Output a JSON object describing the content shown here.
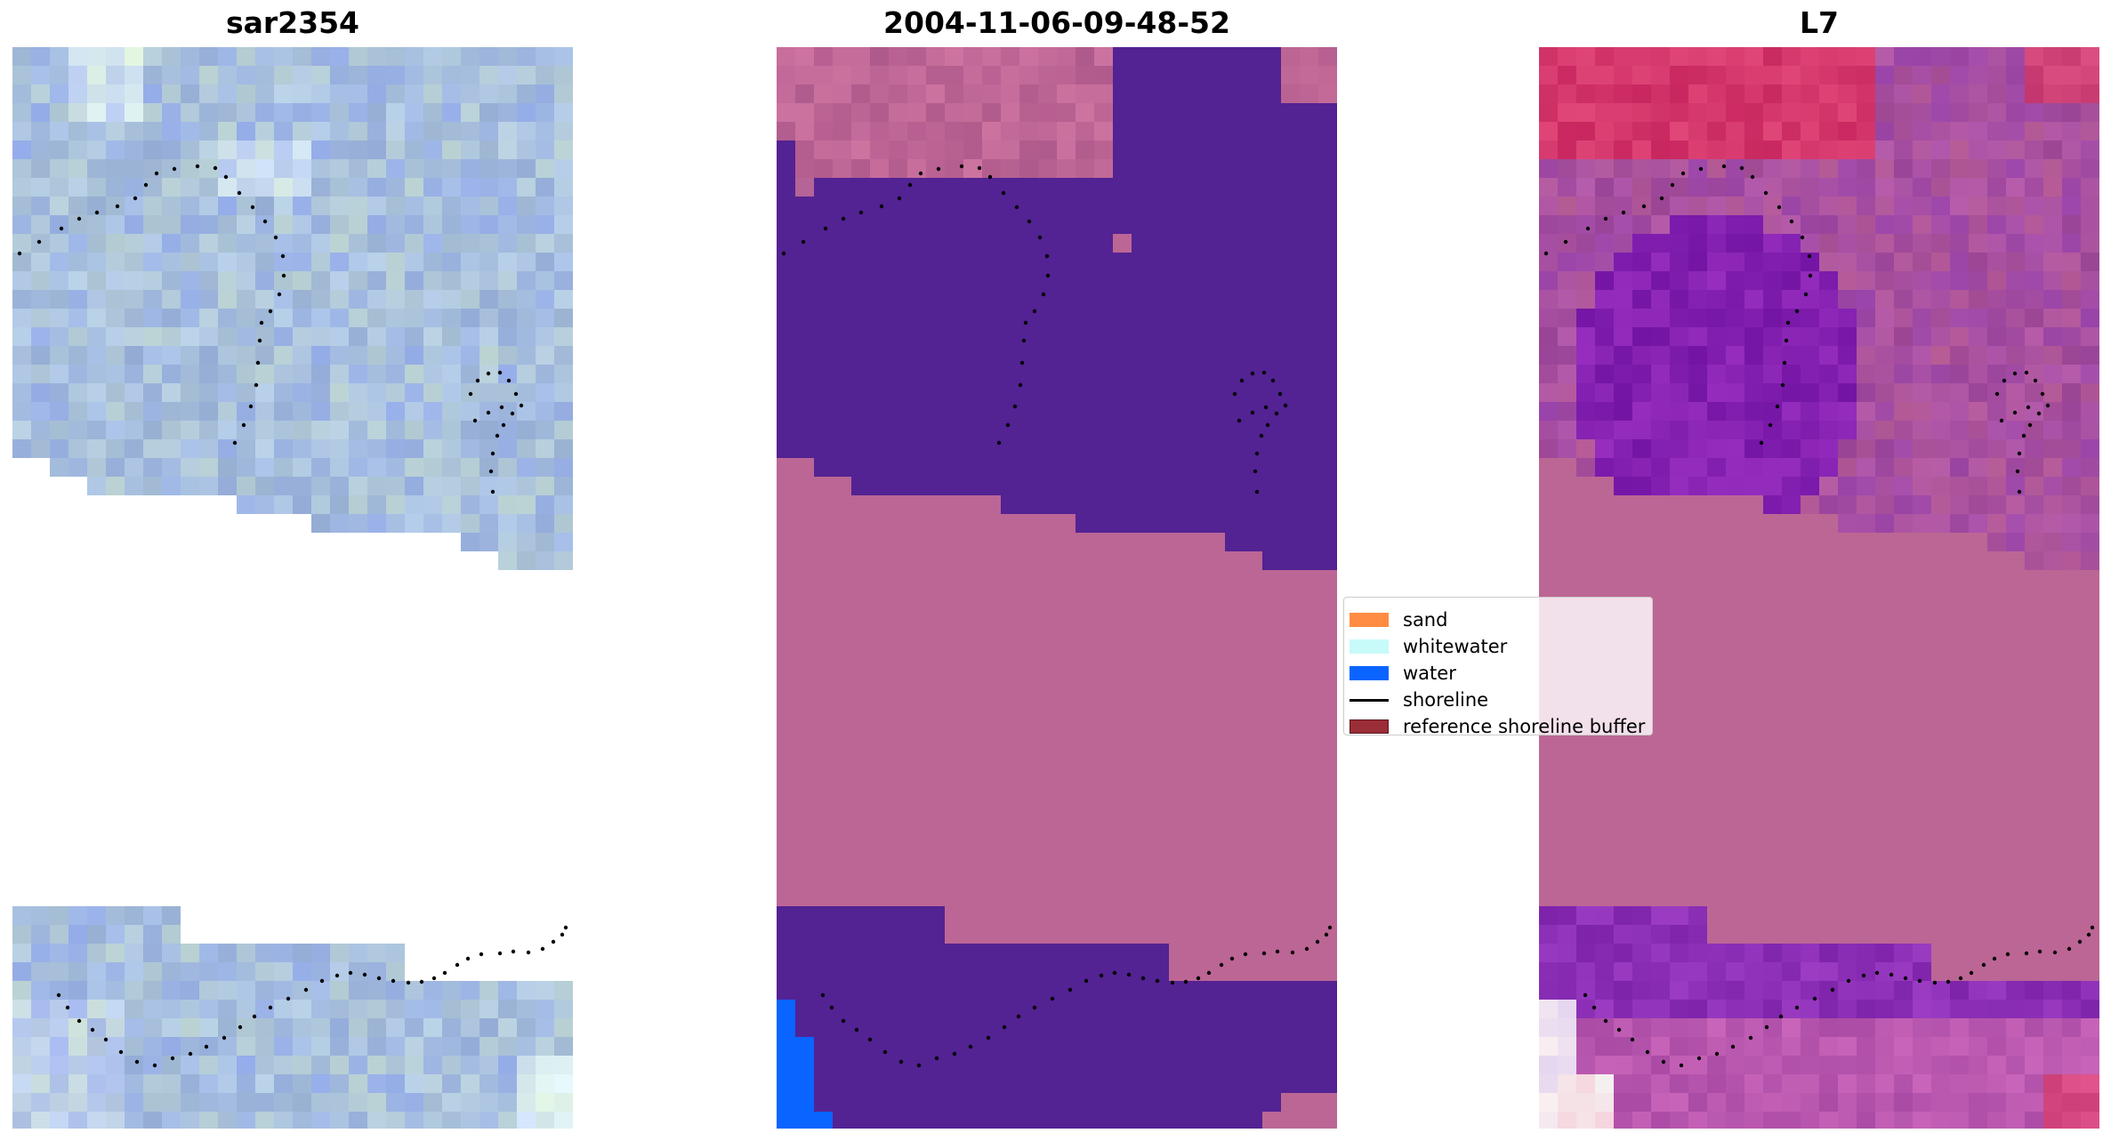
{
  "panels": {
    "left": {
      "title": "sar2354"
    },
    "middle": {
      "title": "2004-11-06-09-48-52"
    },
    "right": {
      "title": "L7"
    }
  },
  "legend": {
    "items": [
      {
        "label": "sand",
        "color": "#FF8C42",
        "kind": "patch"
      },
      {
        "label": "whitewater",
        "color": "#C8FAFA",
        "kind": "patch"
      },
      {
        "label": "water",
        "color": "#0A64FF",
        "kind": "patch"
      },
      {
        "label": "shoreline",
        "color": "#000000",
        "kind": "line"
      },
      {
        "label": "reference shoreline buffer",
        "color": "#9B2D36",
        "kind": "patch"
      }
    ]
  },
  "colors": {
    "land_mask": "#BC6695",
    "water_class": "#532293",
    "water_bright": "#0A64FF",
    "sar_base": "#A8BEDD"
  }
}
